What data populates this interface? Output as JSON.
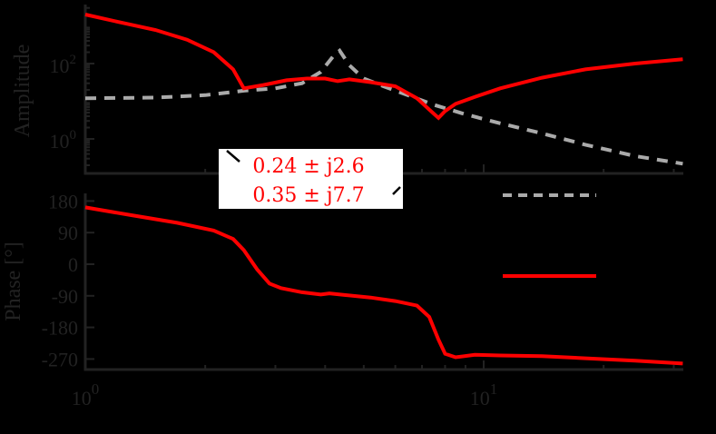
{
  "figure": {
    "background": "#000000",
    "axis_color": "#222222",
    "series_colors": {
      "measured": "#ff0000",
      "model": "#aaaaaa"
    }
  },
  "chart_data": [
    {
      "type": "line",
      "panel": "amplitude",
      "ylabel": "Amplitude",
      "xlabel": "",
      "xscale": "log",
      "yscale": "log",
      "xlim": [
        1,
        31.6
      ],
      "ylim": [
        0.05,
        50000
      ],
      "ytick_labels": [
        "10^0",
        "10^2"
      ],
      "ytick_values": [
        1,
        100
      ],
      "grid": false,
      "series": [
        {
          "name": "measured",
          "style": "solid",
          "color": "#ff0000",
          "x": [
            1.0,
            1.2,
            1.5,
            1.8,
            2.1,
            2.35,
            2.5,
            2.8,
            3.2,
            3.6,
            4.0,
            4.3,
            4.6,
            5.2,
            6.0,
            6.8,
            7.3,
            7.7,
            8.0,
            8.5,
            9.5,
            11,
            14,
            18,
            24,
            31.6
          ],
          "y": [
            2000,
            1300,
            780,
            430,
            200,
            70,
            22,
            27,
            36,
            40,
            40,
            34,
            38,
            32,
            25,
            12,
            6,
            3.6,
            5.5,
            8.5,
            13,
            22,
            42,
            70,
            100,
            130
          ]
        },
        {
          "name": "model",
          "style": "dashed",
          "color": "#aaaaaa",
          "x": [
            1.0,
            1.5,
            2.0,
            2.5,
            3.0,
            3.5,
            3.9,
            4.2,
            4.35,
            4.6,
            5.0,
            5.6,
            6.5,
            7.5,
            9,
            11,
            14,
            18,
            24,
            31.6
          ],
          "y": [
            12,
            12.5,
            14.5,
            19,
            22,
            30,
            60,
            160,
            220,
            90,
            40,
            25,
            14,
            8,
            4.5,
            2.6,
            1.4,
            0.7,
            0.35,
            0.22
          ]
        }
      ]
    },
    {
      "type": "line",
      "panel": "phase",
      "ylabel": "Phase [°]",
      "xlabel": "",
      "xscale": "log",
      "xlim": [
        1,
        31.6
      ],
      "ylim": [
        -290,
        195
      ],
      "ytick_labels": [
        "180",
        "90",
        "0",
        "-90",
        "-180",
        "-270"
      ],
      "ytick_values": [
        180,
        90,
        0,
        -90,
        -180,
        -270
      ],
      "xtick_labels": [
        "10^0",
        "10^1"
      ],
      "xtick_values": [
        1,
        10
      ],
      "grid": false,
      "series": [
        {
          "name": "measured",
          "style": "solid",
          "color": "#ff0000",
          "x": [
            1.0,
            1.3,
            1.7,
            2.1,
            2.35,
            2.5,
            2.7,
            2.9,
            3.1,
            3.5,
            3.9,
            4.1,
            4.5,
            5.2,
            6.0,
            6.8,
            7.3,
            7.7,
            8.0,
            8.5,
            9.5,
            11,
            14,
            18,
            24,
            31.6
          ],
          "y": [
            162,
            140,
            118,
            96,
            72,
            40,
            -15,
            -55,
            -68,
            -80,
            -86,
            -83,
            -88,
            -95,
            -105,
            -118,
            -150,
            -215,
            -255,
            -265,
            -258,
            -260,
            -262,
            -268,
            -275,
            -283
          ]
        }
      ]
    }
  ],
  "axes": {
    "amplitude": {
      "ylabel": "Amplitude",
      "yticks": [
        {
          "base": "10",
          "exp": "2"
        },
        {
          "base": "10",
          "exp": "0"
        }
      ]
    },
    "phase": {
      "ylabel": "Phase [°]",
      "yticks": [
        "180",
        "90",
        "0",
        "-90",
        "-180",
        "-270"
      ]
    },
    "x": {
      "ticks": [
        {
          "base": "10",
          "exp": "0"
        },
        {
          "base": "10",
          "exp": "1"
        }
      ]
    }
  },
  "annotation": {
    "line1": "0.24 ± j2.6",
    "line2": "0.35 ± j7.7",
    "background": "#ffffff",
    "text_color": "#ff0000"
  },
  "legend": {
    "entries": [
      {
        "name": "model",
        "style": "dashed",
        "color": "#aaaaaa",
        "label": ""
      },
      {
        "name": "measured",
        "style": "solid",
        "color": "#ff0000",
        "label": ""
      }
    ]
  }
}
